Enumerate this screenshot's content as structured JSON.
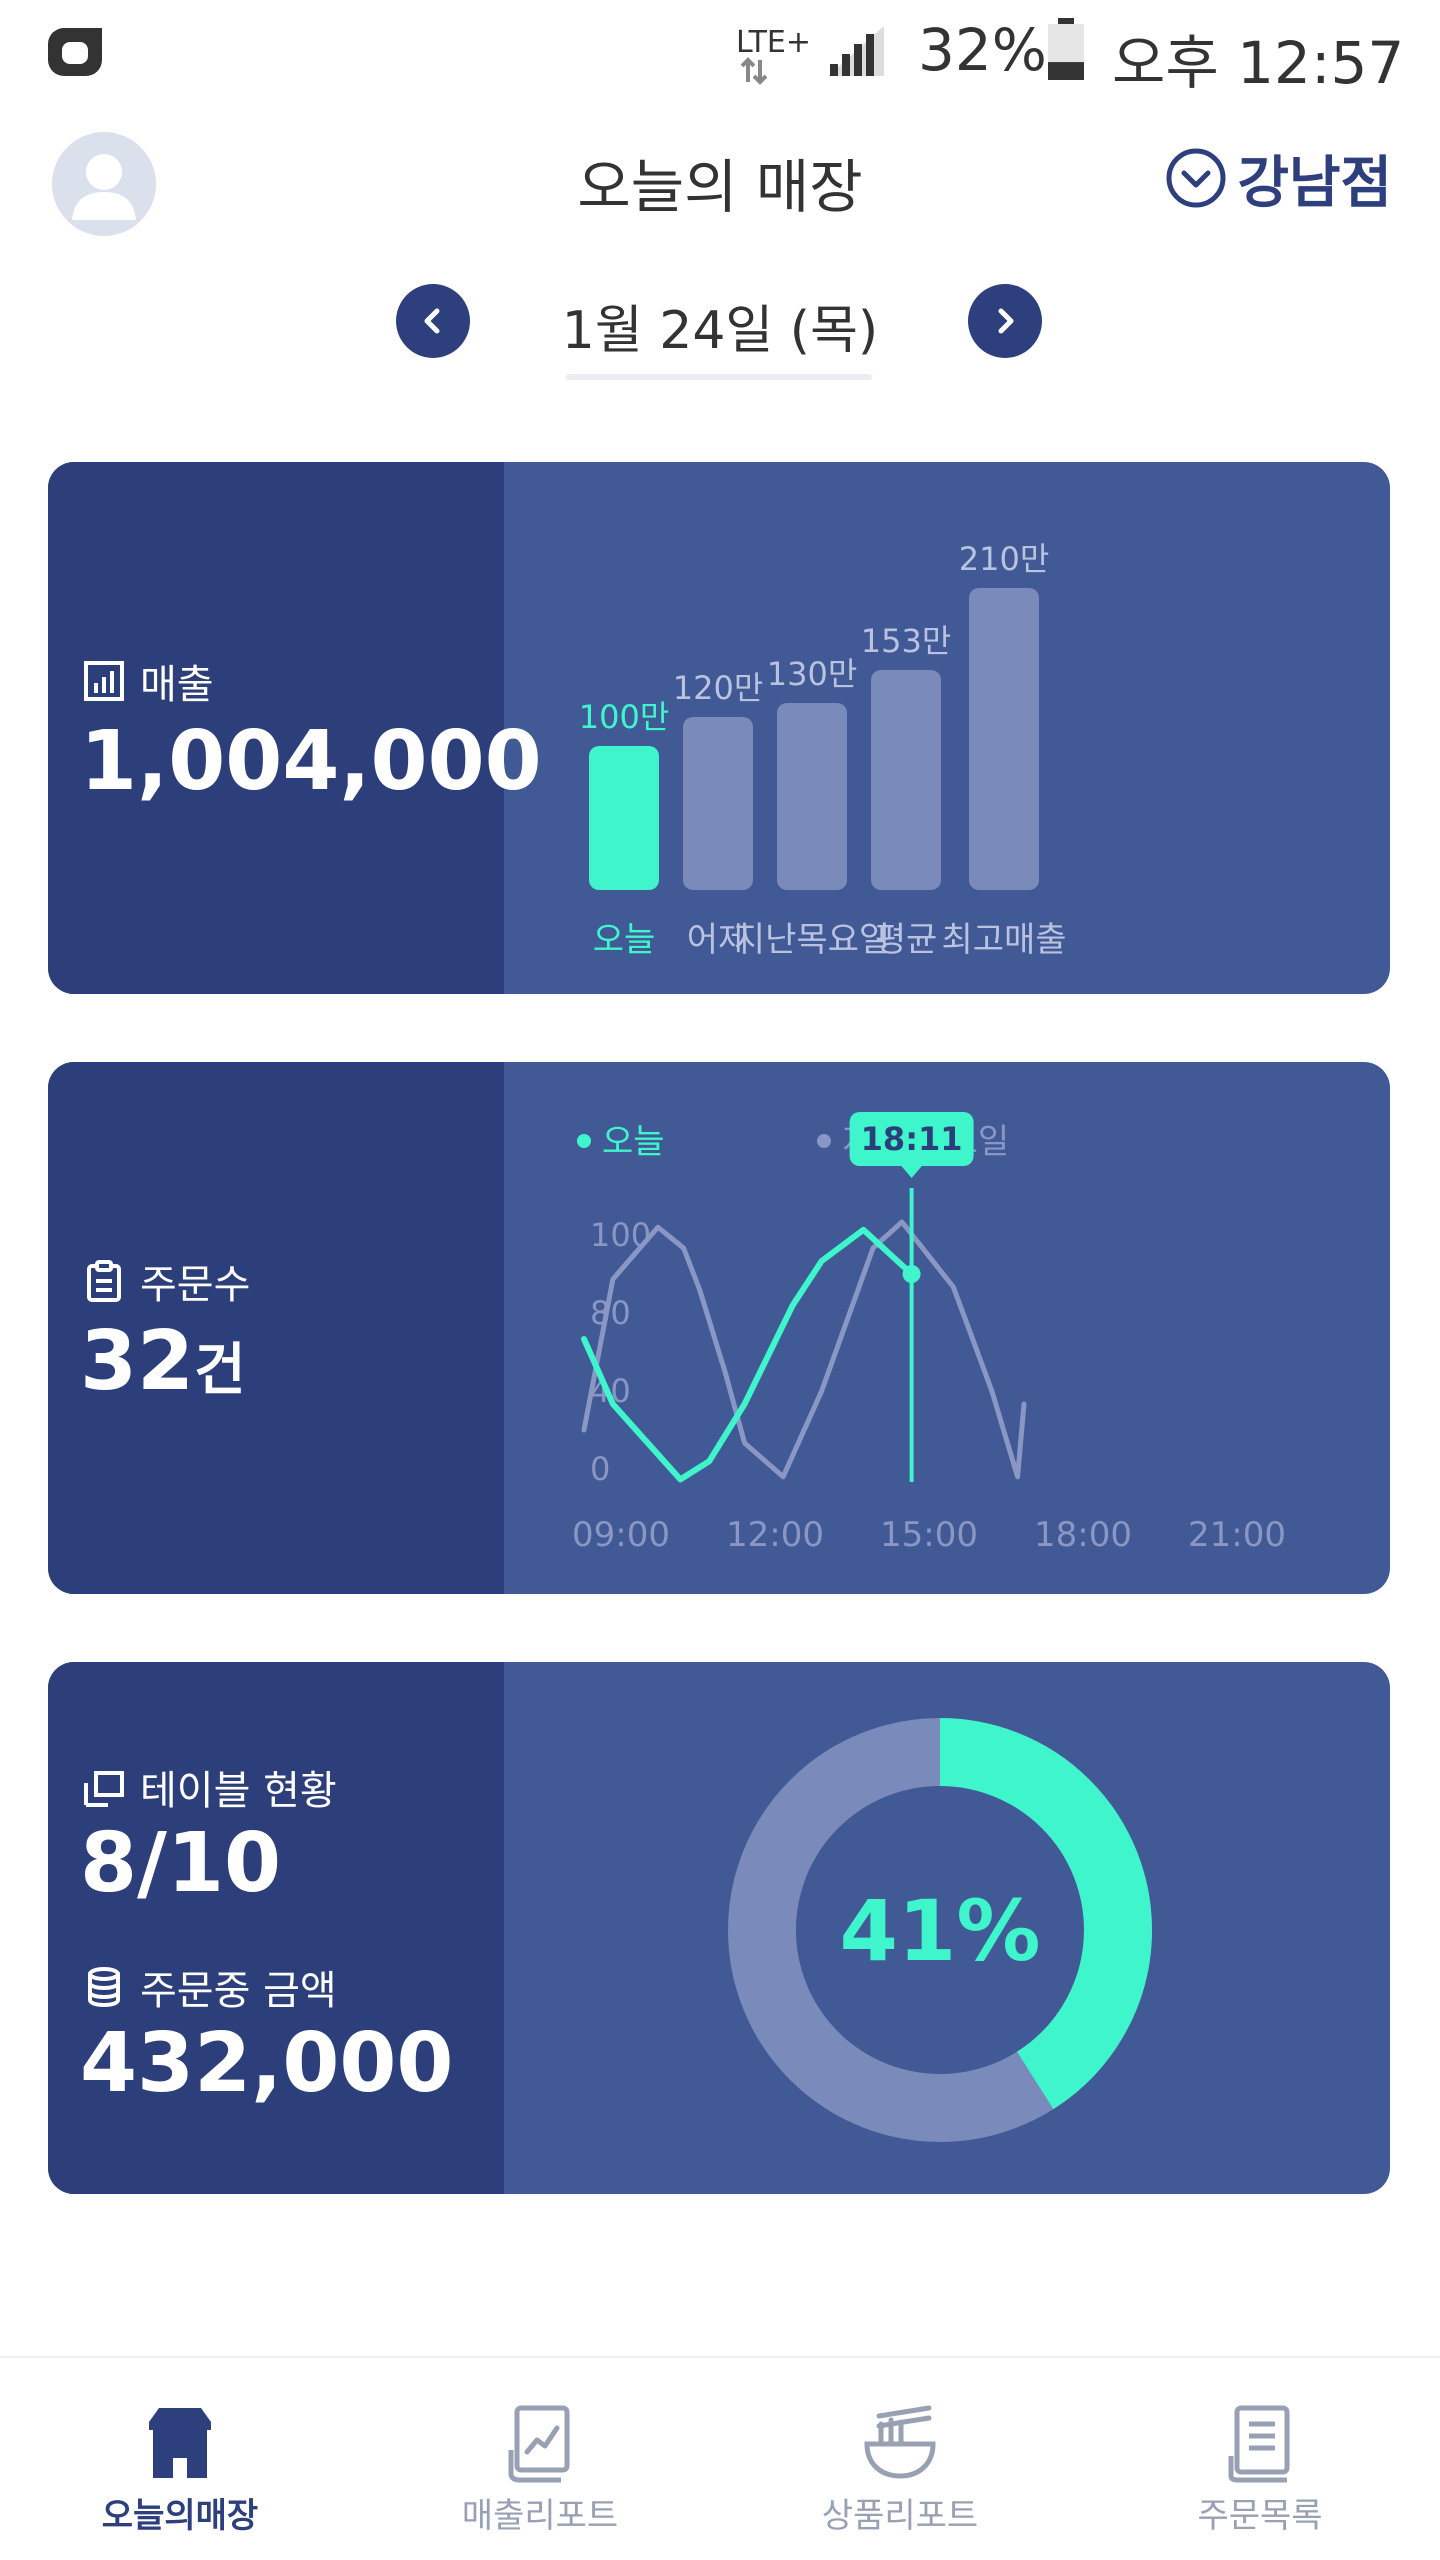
{
  "status_bar": {
    "network": "LTE+",
    "battery": "32%",
    "battery_level": 0.32,
    "time": "오후 12:57"
  },
  "header": {
    "title": "오늘의 매장",
    "store": "강남점"
  },
  "date_nav": {
    "date": "1월 24일 (목)"
  },
  "sales_card": {
    "label": "매출",
    "value": "1,004,000",
    "chart_data": {
      "type": "bar",
      "categories": [
        "오늘",
        "어제",
        "지난목요일",
        "평균",
        "최고매출"
      ],
      "values": [
        100,
        120,
        130,
        153,
        210
      ],
      "value_labels": [
        "100만",
        "120만",
        "130만",
        "153만",
        "210만"
      ],
      "highlight_index": 0
    }
  },
  "orders_card": {
    "label": "주문수",
    "value": "32",
    "unit": "건",
    "chart_data": {
      "type": "line",
      "legend": [
        "오늘",
        "지난 목요일"
      ],
      "y_ticks": [
        "100",
        "80",
        "40",
        "0"
      ],
      "x_ticks": [
        "09:00",
        "12:00",
        "15:00",
        "18:00",
        "21:00"
      ],
      "marker_label": "18:11",
      "series": [
        {
          "name": "오늘",
          "x": [
            9.0,
            9.9,
            12.0,
            12.9,
            14.0,
            15.5,
            16.4,
            17.7,
            19.2
          ],
          "y": [
            55,
            30,
            1,
            8,
            30,
            68,
            85,
            97,
            80
          ]
        },
        {
          "name": "지난 목요일",
          "x": [
            9.0,
            9.9,
            11.3,
            12.1,
            12.6,
            13.4,
            14.0,
            15.2,
            16.4,
            18.0,
            18.9,
            20.5,
            21.7,
            22.5,
            22.7
          ],
          "y": [
            20,
            78,
            98,
            90,
            74,
            42,
            15,
            2,
            35,
            90,
            100,
            75,
            35,
            2,
            30
          ]
        }
      ]
    }
  },
  "tables_card": {
    "table_label": "테이블 현황",
    "table_value": "8/10",
    "amount_label": "주문중 금액",
    "amount_value": "432,000",
    "chart_data": {
      "type": "pie",
      "percent_label": "41%",
      "values": [
        41,
        59
      ]
    }
  },
  "bottom_nav": {
    "items": [
      {
        "label": "오늘의매장"
      },
      {
        "label": "매출리포트"
      },
      {
        "label": "상품리포트"
      },
      {
        "label": "주문목록"
      }
    ]
  },
  "colors": {
    "accent": "#3ef5cc",
    "navy": "#2d3f7d",
    "card_left": "#2d3f7a",
    "card_right": "#415995",
    "muted_bar": "#7a8aba"
  }
}
